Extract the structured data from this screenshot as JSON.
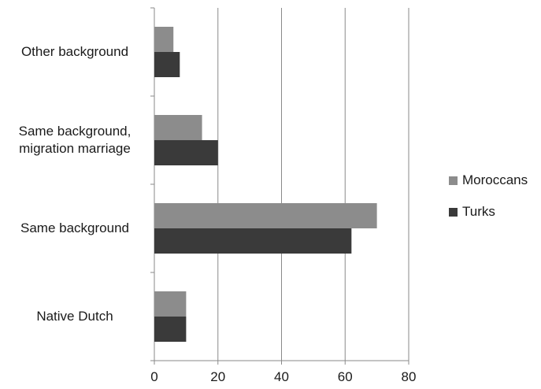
{
  "chart_data": {
    "type": "bar",
    "orientation": "horizontal",
    "categories": [
      "Native Dutch",
      "Same background",
      "Same background, migration marriage",
      "Other background"
    ],
    "category_label_lines": [
      [
        "Native Dutch"
      ],
      [
        "Same background"
      ],
      [
        "Same background,",
        "migration marriage"
      ],
      [
        "Other background"
      ]
    ],
    "series": [
      {
        "name": "Moroccans",
        "color": "#8c8c8c",
        "values": [
          10,
          70,
          15,
          6
        ]
      },
      {
        "name": "Turks",
        "color": "#3a3a3a",
        "values": [
          10,
          62,
          20,
          8
        ]
      }
    ],
    "xlim": [
      0,
      80
    ],
    "xticks": [
      0,
      20,
      40,
      60,
      80
    ],
    "grid": true,
    "legend_position": "right",
    "title": "",
    "xlabel": "",
    "ylabel": ""
  }
}
